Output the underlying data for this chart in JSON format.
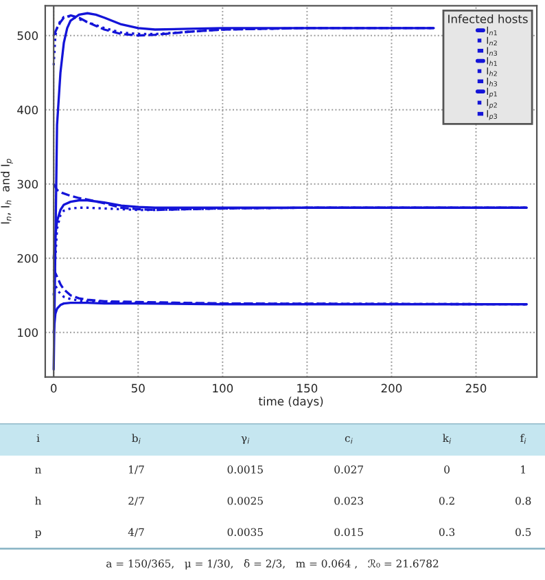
{
  "chart_data": [
    {
      "type": "line",
      "xlabel": "time (days)",
      "ylabel": "I$_{n}$, I$_{h}$  and I$_{p}$",
      "legend_title": "Infected hosts",
      "legend": "top right",
      "grid": true,
      "xlim": [
        -5,
        286
      ],
      "xticks": [
        0,
        50,
        100,
        150,
        200,
        250
      ],
      "ylim": [
        40,
        540
      ],
      "yticks": [
        100,
        200,
        300,
        400,
        500
      ],
      "series": [
        {
          "name": "I$_{n1}$",
          "color": "#1414d8",
          "line_style": "solid",
          "x": [
            0,
            2,
            4,
            6,
            8,
            10,
            15,
            20,
            25,
            30,
            40,
            50,
            60,
            80,
            100,
            150,
            225
          ],
          "values": [
            50,
            380,
            450,
            490,
            510,
            520,
            528,
            530,
            528,
            524,
            515,
            510,
            508,
            509,
            510,
            510,
            510
          ]
        },
        {
          "name": "I$_{n2}$",
          "color": "#1414d8",
          "line_style": "dotted",
          "x": [
            0,
            1,
            2,
            4,
            6,
            10,
            15,
            20,
            30,
            40,
            50,
            60,
            80,
            100,
            150,
            225
          ],
          "values": [
            460,
            500,
            510,
            520,
            525,
            526,
            522,
            518,
            510,
            504,
            502,
            502,
            505,
            508,
            510,
            510
          ]
        },
        {
          "name": "I$_{n3}$",
          "color": "#1414d8",
          "line_style": "dashed",
          "x": [
            0,
            1,
            2,
            4,
            6,
            10,
            15,
            20,
            30,
            40,
            50,
            60,
            80,
            100,
            150,
            225
          ],
          "values": [
            500,
            505,
            510,
            518,
            524,
            527,
            524,
            518,
            508,
            502,
            500,
            501,
            505,
            508,
            510,
            510
          ]
        },
        {
          "name": "I$_{h1}$",
          "color": "#1414d8",
          "line_style": "solid",
          "x": [
            0,
            1,
            2,
            4,
            6,
            10,
            15,
            20,
            30,
            40,
            50,
            60,
            80,
            100,
            150,
            280
          ],
          "values": [
            200,
            230,
            250,
            265,
            272,
            276,
            278,
            278,
            275,
            271,
            269,
            268,
            268,
            268,
            268,
            268
          ]
        },
        {
          "name": "I$_{h2}$",
          "color": "#1414d8",
          "line_style": "dotted",
          "x": [
            0,
            1,
            2,
            4,
            6,
            10,
            15,
            20,
            30,
            40,
            50,
            60,
            80,
            100,
            150,
            280
          ],
          "values": [
            150,
            200,
            240,
            258,
            264,
            267,
            268,
            268,
            267,
            266,
            265,
            265,
            266,
            267,
            268,
            268
          ]
        },
        {
          "name": "I$_{h3}$",
          "color": "#1414d8",
          "line_style": "dashed",
          "x": [
            0,
            2,
            5,
            10,
            15,
            20,
            30,
            40,
            50,
            60,
            80,
            100,
            150,
            280
          ],
          "values": [
            300,
            292,
            288,
            284,
            281,
            279,
            274,
            268,
            266,
            265,
            266,
            267,
            268,
            268
          ]
        },
        {
          "name": "I$_{p1}$",
          "color": "#1414d8",
          "line_style": "solid",
          "x": [
            0,
            1,
            2,
            4,
            6,
            10,
            15,
            20,
            30,
            50,
            100,
            150,
            280
          ],
          "values": [
            100,
            125,
            132,
            137,
            139,
            140,
            140,
            140,
            139,
            139,
            138,
            138,
            138
          ]
        },
        {
          "name": "I$_{p2}$",
          "color": "#1414d8",
          "line_style": "dotted",
          "x": [
            0,
            2,
            4,
            6,
            10,
            15,
            20,
            30,
            50,
            100,
            280
          ],
          "values": [
            170,
            158,
            152,
            148,
            145,
            143,
            142,
            141,
            140,
            139,
            138
          ]
        },
        {
          "name": "I$_{p3}$",
          "color": "#1414d8",
          "line_style": "dashed",
          "x": [
            0,
            2,
            4,
            6,
            10,
            15,
            20,
            30,
            50,
            100,
            280
          ],
          "values": [
            185,
            175,
            165,
            158,
            150,
            146,
            144,
            142,
            141,
            139,
            138
          ]
        }
      ]
    },
    {
      "type": "other",
      "annotations": [
        "i",
        "b$_{i}$",
        "γ$_{i}$",
        "c$_{i}$",
        "k$_{i}$",
        "f$_{i}$",
        "n",
        "1/7",
        "0.0015",
        "0.027",
        "0",
        "1",
        "h",
        "2/7",
        "0.0025",
        "0.023",
        "0.2",
        "0.8",
        "p",
        "4/7",
        "0.0035",
        "0.015",
        "0.3",
        "0.5",
        "a = 150/365,   μ = 1/30,   δ = 2/3,   m = 0.064 ,   ℛ₀ = 21.6782"
      ]
    }
  ]
}
